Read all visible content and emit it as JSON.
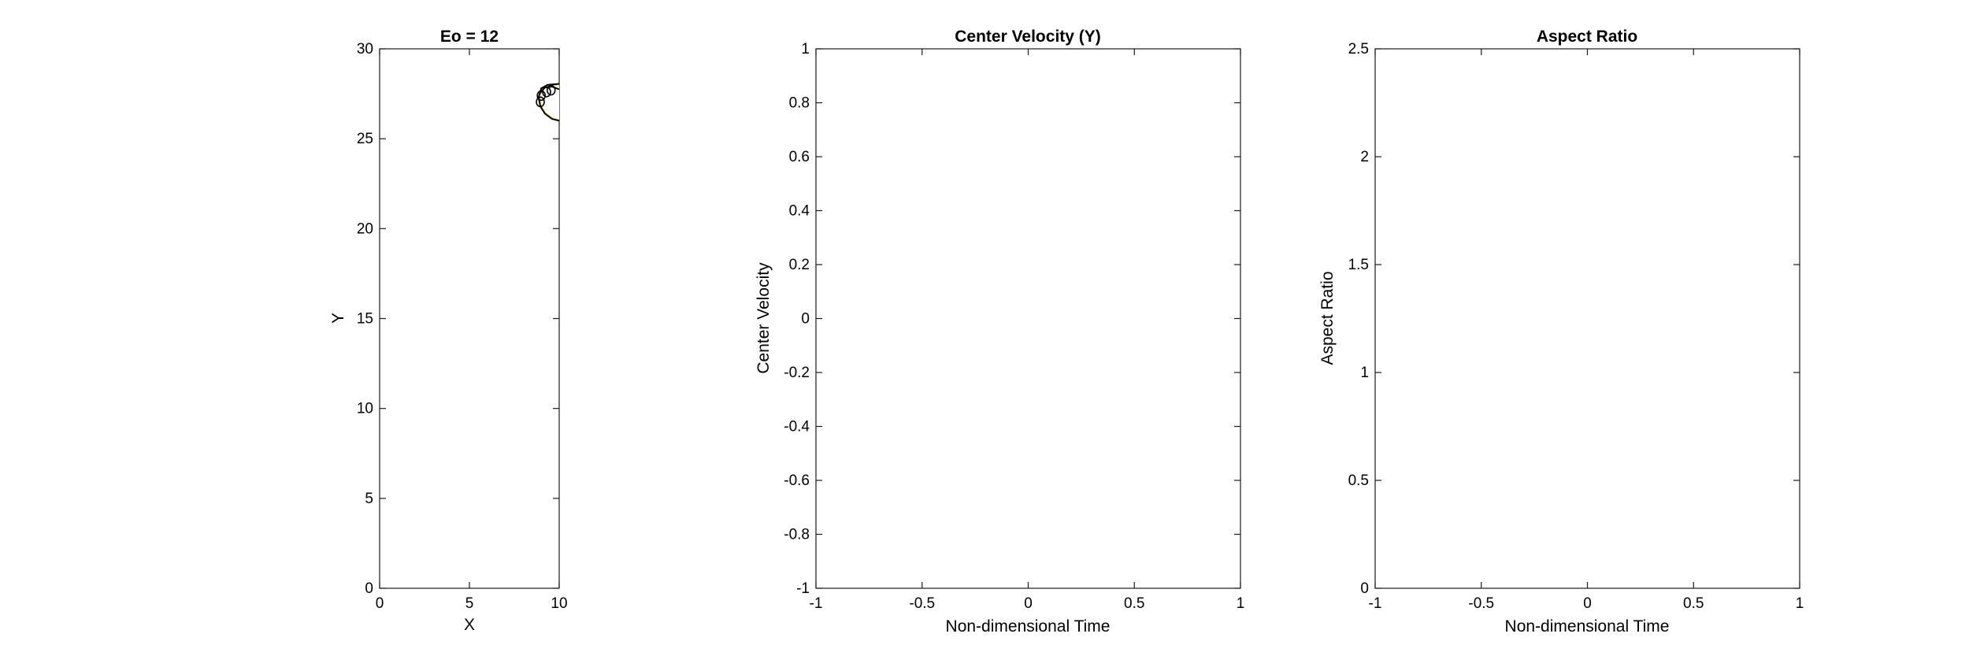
{
  "chart_data": [
    {
      "type": "contour",
      "title": "Eo = 12",
      "xlabel": "X",
      "ylabel": "Y",
      "xlim": [
        0,
        10
      ],
      "ylim": [
        0,
        30
      ],
      "xticks": [
        0,
        5,
        10
      ],
      "xtick_labels": [
        "0",
        "5",
        "10"
      ],
      "yticks": [
        0,
        5,
        10,
        15,
        20,
        25,
        30
      ],
      "ytick_labels": [
        "0",
        "5",
        "10",
        "15",
        "20",
        "25",
        "30"
      ],
      "grid": false,
      "series": [
        {
          "fill_color": "#f2d43a",
          "line_color": "#000000",
          "outline": [
            [
              10,
              28.05
            ],
            [
              9.35,
              28.0
            ],
            [
              9.0,
              27.8
            ],
            [
              8.85,
              27.3
            ],
            [
              8.95,
              26.8
            ],
            [
              9.2,
              26.4
            ],
            [
              9.6,
              26.1
            ],
            [
              10,
              26.0
            ]
          ],
          "bubble_top": [
            [
              8.9,
              27.5
            ],
            [
              9.2,
              27.85
            ],
            [
              9.6,
              27.9
            ],
            [
              10,
              27.75
            ]
          ]
        }
      ]
    },
    {
      "type": "line",
      "title": "Center Velocity (Y)",
      "xlabel": "Non-dimensional Time",
      "ylabel": "Center Velocity",
      "xlim": [
        -1,
        1
      ],
      "ylim": [
        -1,
        1
      ],
      "xticks": [
        -1,
        -0.5,
        0,
        0.5,
        1
      ],
      "xtick_labels": [
        "-1",
        "-0.5",
        "0",
        "0.5",
        "1"
      ],
      "yticks": [
        -1,
        -0.8,
        -0.6,
        -0.4,
        -0.2,
        0,
        0.2,
        0.4,
        0.6,
        0.8,
        1
      ],
      "ytick_labels": [
        "-1",
        "-0.8",
        "-0.6",
        "-0.4",
        "-0.2",
        "0",
        "0.2",
        "0.4",
        "0.6",
        "0.8",
        "1"
      ],
      "grid": false,
      "series": []
    },
    {
      "type": "line",
      "title": "Aspect Ratio",
      "xlabel": "Non-dimensional Time",
      "ylabel": "Aspect Ratio",
      "xlim": [
        -1,
        1
      ],
      "ylim": [
        0,
        2.5
      ],
      "xticks": [
        -1,
        -0.5,
        0,
        0.5,
        1
      ],
      "xtick_labels": [
        "-1",
        "-0.5",
        "0",
        "0.5",
        "1"
      ],
      "yticks": [
        0,
        0.5,
        1,
        1.5,
        2,
        2.5
      ],
      "ytick_labels": [
        "0",
        "0.5",
        "1",
        "1.5",
        "2",
        "2.5"
      ],
      "grid": false,
      "series": []
    }
  ]
}
